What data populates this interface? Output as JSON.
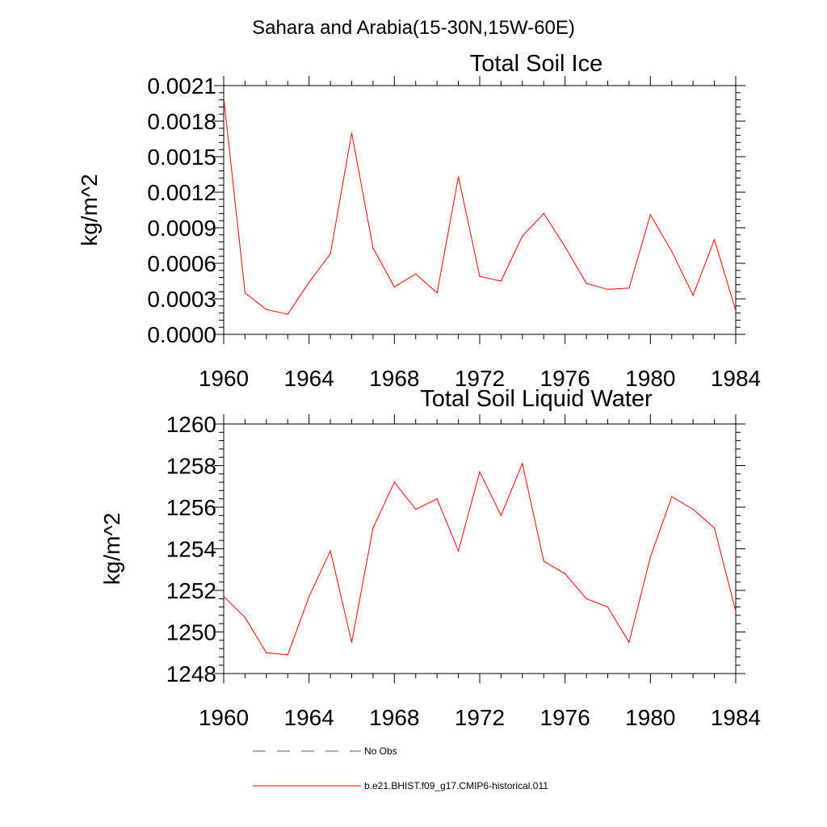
{
  "figure_title": "Sahara and Arabia(15-30N,15W-60E)",
  "chart_data": [
    {
      "type": "line",
      "title": "Total Soil Ice",
      "xlabel": "",
      "ylabel": "kg/m^2",
      "xlim": [
        1960,
        1984
      ],
      "ylim": [
        0,
        0.0021
      ],
      "x_ticks": [
        "1960",
        "1964",
        "1968",
        "1972",
        "1976",
        "1980",
        "1984"
      ],
      "y_ticks": [
        "0.0000",
        "0.0003",
        "0.0006",
        "0.0009",
        "0.0012",
        "0.0015",
        "0.0018",
        "0.0021"
      ],
      "grid": false,
      "x": [
        1960,
        1961,
        1962,
        1963,
        1964,
        1965,
        1966,
        1967,
        1968,
        1969,
        1970,
        1971,
        1972,
        1973,
        1974,
        1975,
        1976,
        1977,
        1978,
        1979,
        1980,
        1981,
        1982,
        1983,
        1984
      ],
      "series": [
        {
          "name": "b.e21.BHIST.f09_g17.CMIP6-historical.011",
          "color": "#ff0000",
          "values": [
            0.002,
            0.00035,
            0.00021,
            0.00017,
            0.00044,
            0.00068,
            0.0017,
            0.00073,
            0.0004,
            0.00051,
            0.00035,
            0.00133,
            0.00049,
            0.00045,
            0.00083,
            0.00102,
            0.00074,
            0.00043,
            0.00038,
            0.00039,
            0.00101,
            0.0007,
            0.00033,
            0.0008,
            0.0002
          ]
        }
      ]
    },
    {
      "type": "line",
      "title": "Total Soil Liquid Water",
      "xlabel": "",
      "ylabel": "kg/m^2",
      "xlim": [
        1960,
        1984
      ],
      "ylim": [
        1248,
        1260
      ],
      "x_ticks": [
        "1960",
        "1964",
        "1968",
        "1972",
        "1976",
        "1980",
        "1984"
      ],
      "y_ticks": [
        "1248",
        "1250",
        "1252",
        "1254",
        "1256",
        "1258",
        "1260"
      ],
      "grid": false,
      "x": [
        1960,
        1961,
        1962,
        1963,
        1964,
        1965,
        1966,
        1967,
        1968,
        1969,
        1970,
        1971,
        1972,
        1973,
        1974,
        1975,
        1976,
        1977,
        1978,
        1979,
        1980,
        1981,
        1982,
        1983,
        1984
      ],
      "series": [
        {
          "name": "b.e21.BHIST.f09_g17.CMIP6-historical.011",
          "color": "#ff0000",
          "values": [
            1251.7,
            1250.7,
            1249.0,
            1248.9,
            1251.7,
            1253.9,
            1249.5,
            1255.0,
            1257.2,
            1255.9,
            1256.4,
            1253.9,
            1257.7,
            1255.6,
            1258.1,
            1253.4,
            1252.8,
            1251.6,
            1251.2,
            1249.5,
            1253.6,
            1256.5,
            1255.9,
            1255.0,
            1251.0
          ]
        }
      ]
    }
  ],
  "legend": {
    "placement": "bottom",
    "items": [
      {
        "label": "No Obs",
        "color": "#5a5a8a",
        "style": "dashed"
      },
      {
        "label": "b.e21.BHIST.f09_g17.CMIP6-historical.011",
        "color": "#ff0000",
        "style": "solid"
      }
    ]
  }
}
